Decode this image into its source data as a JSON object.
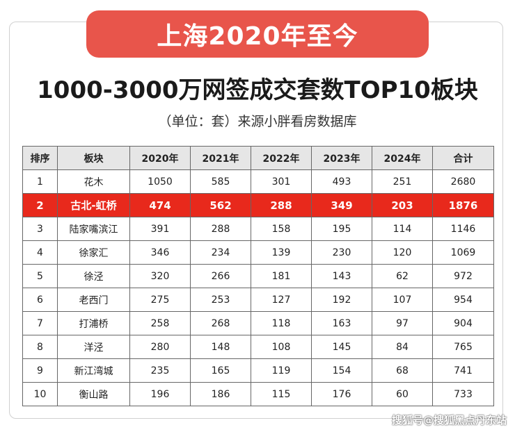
{
  "banner": "上海2020年至今",
  "title": "1000-3000万网签成交套数TOP10板块",
  "subtitle": "（单位：套）来源小胖看房数据库",
  "table": {
    "headers": [
      "排序",
      "板块",
      "2020年",
      "2021年",
      "2022年",
      "2023年",
      "2024年",
      "合计"
    ],
    "rows": [
      [
        "1",
        "花木",
        "1050",
        "585",
        "301",
        "493",
        "251",
        "2680"
      ],
      [
        "2",
        "古北-虹桥",
        "474",
        "562",
        "288",
        "349",
        "203",
        "1876"
      ],
      [
        "3",
        "陆家嘴滨江",
        "391",
        "288",
        "158",
        "195",
        "114",
        "1146"
      ],
      [
        "4",
        "徐家汇",
        "346",
        "234",
        "139",
        "230",
        "120",
        "1069"
      ],
      [
        "5",
        "徐泾",
        "320",
        "266",
        "181",
        "143",
        "62",
        "972"
      ],
      [
        "6",
        "老西门",
        "275",
        "253",
        "127",
        "192",
        "107",
        "954"
      ],
      [
        "7",
        "打浦桥",
        "258",
        "268",
        "118",
        "163",
        "97",
        "904"
      ],
      [
        "8",
        "洋泾",
        "280",
        "148",
        "108",
        "145",
        "84",
        "765"
      ],
      [
        "9",
        "新江湾城",
        "235",
        "165",
        "119",
        "154",
        "68",
        "741"
      ],
      [
        "10",
        "衡山路",
        "196",
        "186",
        "115",
        "176",
        "60",
        "733"
      ]
    ],
    "highlight_row": 1,
    "highlight_color": "#e8291c"
  },
  "watermark": "搜狐号@搜狐黑点丹东站"
}
